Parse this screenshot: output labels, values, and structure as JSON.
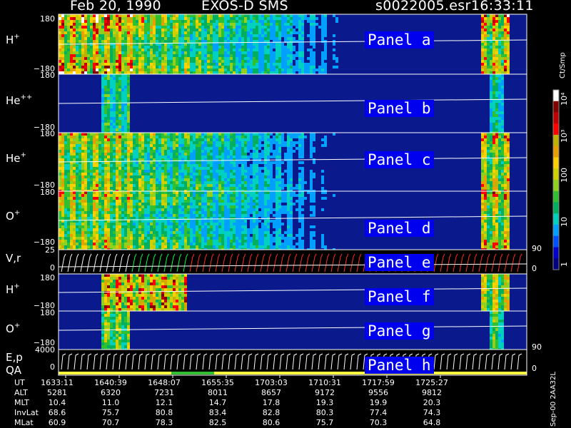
{
  "header": {
    "date": "Feb 20, 1990",
    "instrument": "EXOS-D SMS",
    "file": "s0022005.esr",
    "time": "16:33:11"
  },
  "colorbar": {
    "title": "Ct/Smp",
    "ticks": [
      "1",
      "10",
      "100",
      "10³",
      "10⁴"
    ],
    "colors": [
      "#000080",
      "#0000c8",
      "#0050ff",
      "#00a0ff",
      "#00d0c0",
      "#00b060",
      "#30c030",
      "#90d020",
      "#d0d000",
      "#ffd000",
      "#e8a000",
      "#c0b000",
      "#ff0000",
      "#c00000",
      "#800000",
      "#ffffff"
    ]
  },
  "panels": [
    {
      "id": "a",
      "label": "Panel a",
      "species": "H",
      "charge": "+",
      "ymax": "180",
      "ymin": "−180"
    },
    {
      "id": "b",
      "label": "Panel b",
      "species": "He",
      "charge": "++",
      "ymax": "180",
      "ymin": "−180"
    },
    {
      "id": "c",
      "label": "Panel c",
      "species": "He",
      "charge": "+",
      "ymax": "180",
      "ymin": "−180"
    },
    {
      "id": "d",
      "label": "Panel d",
      "species": "O",
      "charge": "+",
      "ymax": "180",
      "ymin": "−180"
    },
    {
      "id": "e",
      "label": "Panel e",
      "species": "V,r",
      "charge": "",
      "ymax": "25",
      "ymin": "0",
      "right_max": "90",
      "right_min": "0"
    },
    {
      "id": "f",
      "label": "Panel f",
      "species": "H",
      "charge": "+",
      "ymax": "180",
      "ymin": "−180"
    },
    {
      "id": "g",
      "label": "Panel g",
      "species": "O",
      "charge": "+",
      "ymax": "180",
      "ymin": "−180"
    },
    {
      "id": "h",
      "label": "Panel h",
      "species": "E,p",
      "species2": "QA",
      "charge": "",
      "ymax": "4000",
      "ymin": "0",
      "right_max": "90",
      "right_min": "0"
    }
  ],
  "orbit": {
    "rows": [
      {
        "label": "UT",
        "values": [
          "1633:11",
          "1640:39",
          "1648:07",
          "1655:35",
          "1703:03",
          "1710:31",
          "1717:59",
          "1725:27"
        ]
      },
      {
        "label": "ALT",
        "values": [
          "5281",
          "6320",
          "7231",
          "8011",
          "8657",
          "9172",
          "9556",
          "9812"
        ]
      },
      {
        "label": "MLT",
        "values": [
          "10.4",
          "11.0",
          "12.1",
          "14.7",
          "17.8",
          "19.3",
          "19.9",
          "20.3"
        ]
      },
      {
        "label": "InvLat",
        "values": [
          "68.6",
          "75.7",
          "80.8",
          "83.4",
          "82.8",
          "80.3",
          "77.4",
          "74.3"
        ]
      },
      {
        "label": "MLat",
        "values": [
          "60.9",
          "70.7",
          "78.3",
          "82.5",
          "80.6",
          "75.7",
          "70.3",
          "64.8"
        ]
      }
    ]
  },
  "footer_id": "Sep-00 2AA32L",
  "chart_data": {
    "type": "heatmap",
    "title": "Feb 20, 1990   EXOS-D SMS",
    "xlabel": "UT",
    "x": [
      "1633:11",
      "1640:39",
      "1648:07",
      "1655:35",
      "1703:03",
      "1710:31",
      "1717:59",
      "1725:27"
    ],
    "series": [
      {
        "name": "H+",
        "ylim": [
          -180,
          180
        ]
      },
      {
        "name": "He++",
        "ylim": [
          -180,
          180
        ]
      },
      {
        "name": "He+",
        "ylim": [
          -180,
          180
        ]
      },
      {
        "name": "O+",
        "ylim": [
          -180,
          180
        ]
      },
      {
        "name": "V,r",
        "ylim": [
          0,
          25
        ]
      },
      {
        "name": "H+",
        "ylim": [
          -180,
          180
        ]
      },
      {
        "name": "O+",
        "ylim": [
          -180,
          180
        ]
      },
      {
        "name": "E,p",
        "ylim": [
          0,
          4000
        ]
      }
    ],
    "colorscale": "log, 1 to 10^4 Ct/Smp"
  }
}
